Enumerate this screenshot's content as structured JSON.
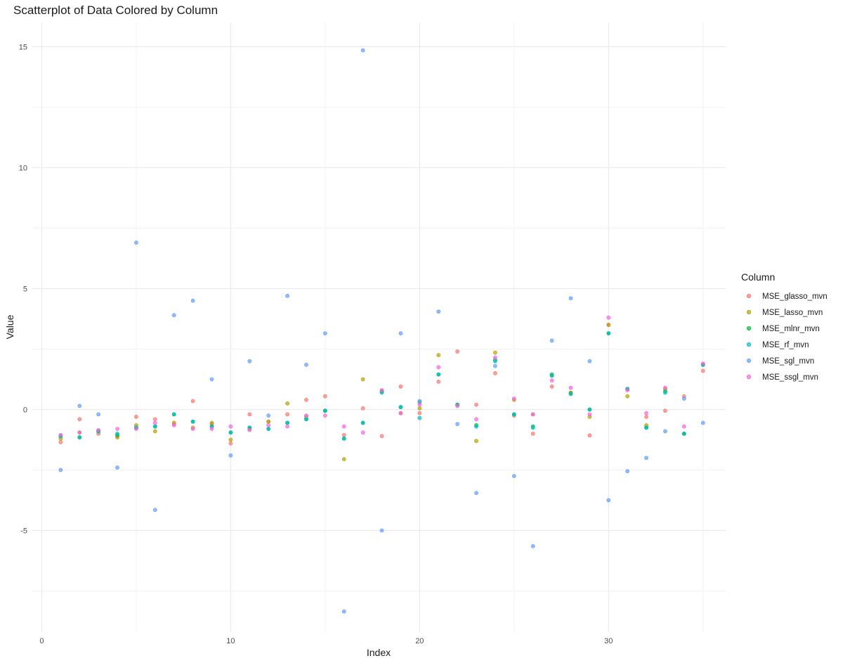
{
  "chart_data": {
    "type": "scatter",
    "title": "Scatterplot of Data Colored by Column",
    "xlabel": "Index",
    "ylabel": "Value",
    "xlim": [
      -0.5,
      36.2
    ],
    "ylim": [
      -9.2,
      16.0
    ],
    "x_ticks": [
      0,
      10,
      20,
      30
    ],
    "y_ticks": [
      -5,
      0,
      5,
      10,
      15
    ],
    "grid": true,
    "legend_title": "Column",
    "legend_position": "right",
    "point_opacity": 0.7,
    "series": [
      {
        "name": "MSE_glasso_mvn",
        "color": "#F8766D",
        "x": [
          1,
          2,
          3,
          4,
          5,
          6,
          7,
          8,
          9,
          10,
          11,
          12,
          13,
          14,
          15,
          16,
          17,
          18,
          19,
          20,
          21,
          22,
          23,
          24,
          25,
          26,
          27,
          28,
          29,
          30,
          31,
          32,
          33,
          34,
          35
        ],
        "y": [
          -1.35,
          -0.4,
          -1.0,
          -1.1,
          -0.3,
          -0.4,
          -0.6,
          0.35,
          -0.6,
          -1.4,
          -0.2,
          -0.5,
          -0.2,
          0.4,
          0.55,
          -1.05,
          0.05,
          -1.1,
          0.95,
          -0.15,
          1.15,
          2.4,
          0.2,
          1.5,
          -0.25,
          -1.0,
          0.95,
          0.7,
          -1.07,
          3.5,
          0.85,
          -0.3,
          -0.05,
          0.55,
          1.6
        ]
      },
      {
        "name": "MSE_lasso_mvn",
        "color": "#B79F00",
        "x": [
          1,
          2,
          3,
          4,
          5,
          6,
          7,
          8,
          9,
          10,
          11,
          12,
          13,
          14,
          15,
          16,
          17,
          18,
          19,
          20,
          21,
          22,
          23,
          24,
          25,
          26,
          27,
          28,
          29,
          30,
          31,
          32,
          33,
          34,
          35
        ],
        "y": [
          -1.2,
          -0.95,
          -0.9,
          -1.15,
          -0.65,
          -0.9,
          -0.55,
          -0.75,
          -0.55,
          -1.25,
          -0.8,
          -0.5,
          0.25,
          -0.3,
          -0.05,
          -2.05,
          1.25,
          0.75,
          -0.15,
          0.05,
          2.25,
          0.2,
          -1.3,
          2.35,
          0.4,
          -0.2,
          1.4,
          0.7,
          -0.3,
          3.5,
          0.55,
          -0.65,
          0.85,
          -1.0,
          1.85
        ]
      },
      {
        "name": "MSE_mlnr_mvn",
        "color": "#00BA38",
        "x": [
          1,
          2,
          3,
          4,
          5,
          6,
          7,
          8,
          9,
          10,
          11,
          12,
          13,
          14,
          15,
          16,
          17,
          18,
          19,
          20,
          21,
          22,
          23,
          24,
          25,
          26,
          27,
          28,
          29,
          30,
          31,
          32,
          33,
          34,
          35
        ],
        "y": [
          -1.1,
          -1.15,
          -0.9,
          -1.05,
          -0.75,
          -0.7,
          -0.2,
          -0.5,
          -0.7,
          -0.95,
          -0.75,
          -0.8,
          -0.55,
          -0.4,
          -0.05,
          -1.2,
          -0.55,
          0.75,
          0.1,
          0.3,
          1.45,
          0.2,
          -0.65,
          2.05,
          -0.2,
          -0.7,
          1.45,
          0.65,
          0.0,
          3.15,
          0.85,
          -0.75,
          0.75,
          -1.0,
          1.85
        ]
      },
      {
        "name": "MSE_rf_mvn",
        "color": "#00BFC4",
        "x": [
          1,
          2,
          3,
          4,
          5,
          6,
          7,
          8,
          9,
          10,
          11,
          12,
          13,
          14,
          15,
          16,
          17,
          18,
          19,
          20,
          21,
          22,
          23,
          24,
          25,
          26,
          27,
          28,
          29,
          30,
          31,
          32,
          33,
          34,
          35
        ],
        "y": [
          -1.1,
          -1.15,
          -0.9,
          -1.0,
          -0.75,
          -0.7,
          -0.2,
          -0.5,
          -0.7,
          -0.95,
          -0.75,
          -0.8,
          -0.55,
          -0.4,
          -0.05,
          -1.2,
          -0.55,
          0.7,
          0.1,
          -0.35,
          1.45,
          0.2,
          -0.7,
          2.0,
          -0.2,
          -0.75,
          1.4,
          0.65,
          0.0,
          3.15,
          0.85,
          -0.75,
          0.7,
          -1.0,
          1.85
        ]
      },
      {
        "name": "MSE_sgl_mvn",
        "color": "#619CFF",
        "x": [
          1,
          2,
          3,
          4,
          5,
          6,
          7,
          8,
          9,
          10,
          11,
          12,
          13,
          14,
          15,
          16,
          17,
          18,
          19,
          20,
          21,
          22,
          23,
          24,
          25,
          26,
          27,
          28,
          29,
          30,
          31,
          32,
          33,
          34,
          35
        ],
        "y": [
          -2.5,
          0.15,
          -0.2,
          -2.4,
          6.9,
          -4.15,
          3.9,
          4.5,
          1.25,
          -1.9,
          2.0,
          -0.25,
          4.7,
          1.85,
          3.15,
          -8.35,
          14.85,
          -5.0,
          3.15,
          0.35,
          4.05,
          -0.6,
          -3.45,
          1.8,
          -2.75,
          -5.65,
          2.85,
          4.6,
          2.0,
          -3.75,
          -2.55,
          -2.0,
          -0.9,
          0.45,
          -0.55
        ]
      },
      {
        "name": "MSE_ssgl_mvn",
        "color": "#F564E3",
        "x": [
          1,
          2,
          3,
          4,
          5,
          6,
          7,
          8,
          9,
          10,
          11,
          12,
          13,
          14,
          15,
          16,
          17,
          18,
          19,
          20,
          21,
          22,
          23,
          24,
          25,
          26,
          27,
          28,
          29,
          30,
          31,
          32,
          33,
          34,
          35
        ],
        "y": [
          -1.05,
          -0.95,
          -0.85,
          -0.8,
          -0.8,
          -0.55,
          -0.65,
          -0.8,
          -0.8,
          -0.7,
          -0.85,
          -0.65,
          -0.7,
          -0.25,
          -0.25,
          -0.7,
          -0.95,
          0.8,
          -0.15,
          0.2,
          1.75,
          0.15,
          -0.4,
          2.15,
          0.45,
          -0.2,
          1.2,
          0.9,
          -0.2,
          3.8,
          0.8,
          -0.15,
          0.9,
          -0.7,
          1.9
        ]
      }
    ]
  }
}
